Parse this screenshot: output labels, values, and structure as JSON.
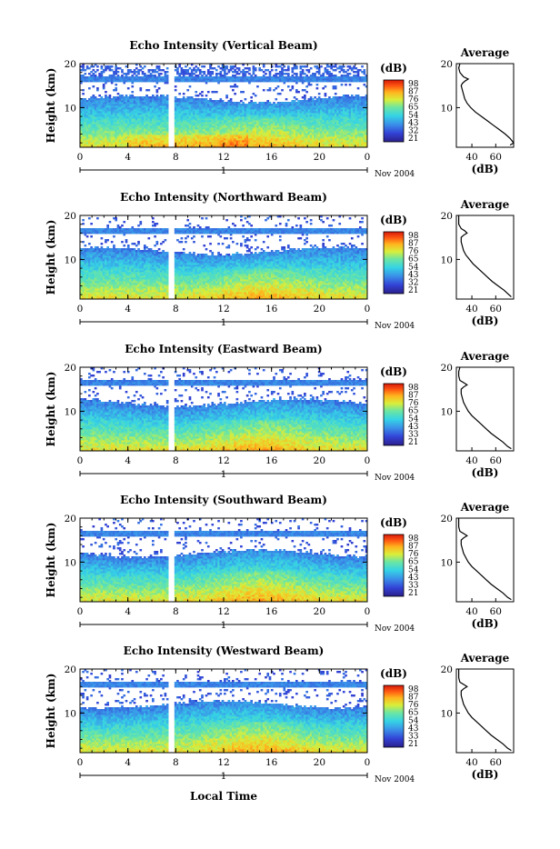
{
  "figure": {
    "footer_xlabel": "Local Time",
    "date_label": "Nov 2004"
  },
  "colorbar": {
    "unit": "(dB)",
    "ticks_default": [
      "98",
      "87",
      "76",
      "65",
      "54",
      "43",
      "32",
      "21"
    ],
    "ticks_east_south_west": [
      "98",
      "87",
      "76",
      "65",
      "54",
      "43",
      "33",
      "21"
    ]
  },
  "chart_data": [
    {
      "type": "heatmap",
      "title": "Echo Intensity (Vertical Beam)",
      "ylabel": "Height (km)",
      "xlabel": "",
      "x_ticks": [
        "0",
        "4",
        "8",
        "12",
        "16",
        "20",
        "0"
      ],
      "day_label": "1",
      "y_ticks": [
        "20",
        "10"
      ],
      "xlim": [
        0,
        24
      ],
      "ylim": [
        1,
        20
      ],
      "colorbar_range_db": [
        21,
        98
      ],
      "data_gap_local_time": 7.6,
      "colorbar_ticks": [
        "98",
        "87",
        "76",
        "65",
        "54",
        "43",
        "32",
        "21"
      ],
      "average_profile": {
        "title": "Average",
        "xlabel": "(dB)",
        "x_ticks": [
          "40",
          "60"
        ],
        "y_ticks": [
          "20",
          "10"
        ],
        "xlim": [
          27,
          75
        ],
        "ylim": [
          1,
          20
        ],
        "height_km": [
          1.5,
          2,
          3,
          4,
          5,
          6,
          7,
          8,
          9,
          10,
          11,
          12,
          13,
          14,
          15,
          15.5,
          16,
          16.5,
          17,
          18,
          19,
          20
        ],
        "db": [
          72,
          75,
          72,
          68,
          63,
          58,
          53,
          48,
          43,
          39,
          36,
          34,
          33,
          32,
          31,
          32,
          34,
          37,
          33,
          30,
          29,
          30
        ]
      }
    },
    {
      "type": "heatmap",
      "title": "Echo Intensity (Northward Beam)",
      "ylabel": "Height (km)",
      "xlabel": "",
      "x_ticks": [
        "0",
        "4",
        "8",
        "12",
        "16",
        "20",
        "0"
      ],
      "day_label": "1",
      "y_ticks": [
        "20",
        "10"
      ],
      "xlim": [
        0,
        24
      ],
      "ylim": [
        1,
        20
      ],
      "colorbar_range_db": [
        21,
        98
      ],
      "data_gap_local_time": 7.6,
      "colorbar_ticks": [
        "98",
        "87",
        "76",
        "65",
        "54",
        "43",
        "32",
        "21"
      ],
      "average_profile": {
        "title": "Average",
        "xlabel": "(dB)",
        "x_ticks": [
          "40",
          "60"
        ],
        "y_ticks": [
          "20",
          "10"
        ],
        "xlim": [
          27,
          75
        ],
        "ylim": [
          1,
          20
        ],
        "height_km": [
          1.5,
          2,
          3,
          4,
          5,
          6,
          7,
          8,
          9,
          10,
          11,
          12,
          13,
          14,
          15,
          15.5,
          16,
          16.5,
          17,
          18,
          19,
          20
        ],
        "db": [
          73,
          71,
          67,
          62,
          57,
          53,
          49,
          45,
          41,
          38,
          35,
          33,
          32,
          31,
          31,
          33,
          36,
          34,
          31,
          29,
          29,
          29
        ]
      }
    },
    {
      "type": "heatmap",
      "title": "Echo Intensity (Eastward Beam)",
      "ylabel": "Height (km)",
      "xlabel": "",
      "x_ticks": [
        "0",
        "4",
        "8",
        "12",
        "16",
        "20",
        "0"
      ],
      "day_label": "1",
      "y_ticks": [
        "20",
        "10"
      ],
      "xlim": [
        0,
        24
      ],
      "ylim": [
        1,
        20
      ],
      "colorbar_range_db": [
        21,
        98
      ],
      "data_gap_local_time": 7.6,
      "colorbar_ticks": [
        "98",
        "87",
        "76",
        "65",
        "54",
        "43",
        "33",
        "21"
      ],
      "average_profile": {
        "title": "Average",
        "xlabel": "(dB)",
        "x_ticks": [
          "40",
          "60"
        ],
        "y_ticks": [
          "20",
          "10"
        ],
        "xlim": [
          27,
          75
        ],
        "ylim": [
          1,
          20
        ],
        "height_km": [
          1.5,
          2,
          3,
          4,
          5,
          6,
          7,
          8,
          9,
          10,
          11,
          12,
          13,
          14,
          15,
          15.5,
          16,
          16.5,
          17,
          18,
          19,
          20
        ],
        "db": [
          73,
          70,
          66,
          61,
          56,
          52,
          48,
          44,
          40,
          37,
          35,
          33,
          32,
          31,
          31,
          33,
          36,
          33,
          30,
          29,
          29,
          30
        ]
      }
    },
    {
      "type": "heatmap",
      "title": "Echo Intensity (Southward Beam)",
      "ylabel": "Height (km)",
      "xlabel": "",
      "x_ticks": [
        "0",
        "4",
        "8",
        "12",
        "16",
        "20",
        "0"
      ],
      "day_label": "1",
      "y_ticks": [
        "20",
        "10"
      ],
      "xlim": [
        0,
        24
      ],
      "ylim": [
        1,
        20
      ],
      "colorbar_range_db": [
        21,
        98
      ],
      "data_gap_local_time": 7.6,
      "colorbar_ticks": [
        "98",
        "87",
        "76",
        "65",
        "54",
        "43",
        "33",
        "21"
      ],
      "average_profile": {
        "title": "Average",
        "xlabel": "(dB)",
        "x_ticks": [
          "40",
          "60"
        ],
        "y_ticks": [
          "20",
          "10"
        ],
        "xlim": [
          27,
          75
        ],
        "ylim": [
          1,
          20
        ],
        "height_km": [
          1.5,
          2,
          3,
          4,
          5,
          6,
          7,
          8,
          9,
          10,
          11,
          12,
          13,
          14,
          15,
          15.5,
          16,
          16.5,
          17,
          18,
          19,
          20
        ],
        "db": [
          73,
          70,
          66,
          61,
          56,
          52,
          48,
          44,
          40,
          37,
          35,
          33,
          32,
          31,
          31,
          33,
          36,
          33,
          30,
          29,
          29,
          29
        ]
      }
    },
    {
      "type": "heatmap",
      "title": "Echo Intensity (Westward Beam)",
      "ylabel": "Height (km)",
      "xlabel": "Local Time",
      "x_ticks": [
        "0",
        "4",
        "8",
        "12",
        "16",
        "20",
        "0"
      ],
      "day_label": "1",
      "y_ticks": [
        "20",
        "10"
      ],
      "xlim": [
        0,
        24
      ],
      "ylim": [
        1,
        20
      ],
      "colorbar_range_db": [
        21,
        98
      ],
      "data_gap_local_time": 7.6,
      "colorbar_ticks": [
        "98",
        "87",
        "76",
        "65",
        "54",
        "43",
        "33",
        "21"
      ],
      "average_profile": {
        "title": "Average",
        "xlabel": "(dB)",
        "x_ticks": [
          "40",
          "60"
        ],
        "y_ticks": [
          "20",
          "10"
        ],
        "xlim": [
          27,
          75
        ],
        "ylim": [
          1,
          20
        ],
        "height_km": [
          1.5,
          2,
          3,
          4,
          5,
          6,
          7,
          8,
          9,
          10,
          11,
          12,
          13,
          14,
          15,
          15.5,
          16,
          16.5,
          17,
          18,
          19,
          20
        ],
        "db": [
          73,
          70,
          66,
          61,
          56,
          52,
          48,
          44,
          40,
          37,
          35,
          33,
          32,
          31,
          31,
          33,
          36,
          33,
          30,
          29,
          29,
          29
        ]
      }
    }
  ]
}
